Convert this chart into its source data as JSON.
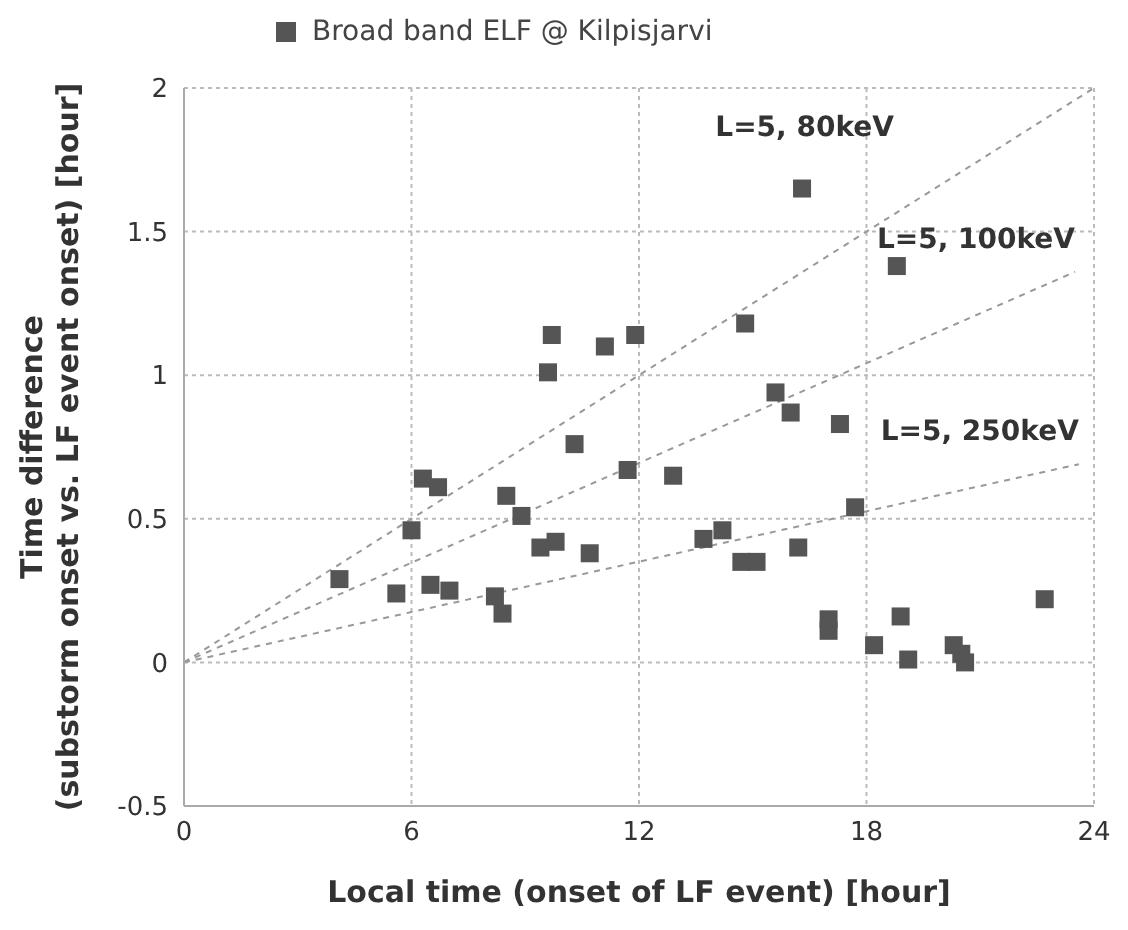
{
  "chart_data": {
    "type": "scatter",
    "xlabel": "Local time (onset of LF event) [hour]",
    "ylabel": "Time difference\n(substorm onset vs. LF event onset) [hour]",
    "series": [
      {
        "name": "Broad band ELF @ Kilpisjarvi",
        "marker": "square",
        "color": "#555555",
        "x": [
          4.1,
          5.6,
          6.0,
          6.3,
          6.7,
          6.5,
          7.0,
          8.2,
          8.4,
          8.5,
          8.9,
          9.4,
          9.8,
          9.6,
          9.7,
          10.3,
          10.7,
          11.1,
          11.7,
          11.9,
          12.9,
          13.7,
          14.2,
          14.7,
          15.1,
          14.8,
          15.6,
          16.0,
          16.2,
          16.3,
          17.3,
          17.7,
          17.0,
          17.0,
          18.2,
          18.8,
          18.9,
          19.1,
          20.3,
          20.5,
          20.6,
          22.7
        ],
        "values": [
          0.29,
          0.24,
          0.46,
          0.64,
          0.61,
          0.27,
          0.25,
          0.23,
          0.17,
          0.58,
          0.51,
          0.4,
          0.42,
          1.01,
          1.14,
          0.76,
          0.38,
          1.1,
          0.67,
          1.14,
          0.65,
          0.43,
          0.46,
          0.35,
          0.35,
          1.18,
          0.94,
          0.87,
          0.4,
          1.65,
          0.83,
          0.54,
          0.15,
          0.11,
          0.06,
          1.38,
          0.16,
          0.01,
          0.06,
          0.03,
          0.0,
          0.22
        ]
      },
      {
        "type": "line",
        "marker": "none",
        "color": "#999999",
        "x": [
          0,
          24
        ],
        "values": [
          0,
          2.0
        ]
      },
      {
        "type": "line",
        "marker": "none",
        "color": "#999999",
        "x": [
          0,
          23.5
        ],
        "values": [
          0,
          1.36
        ]
      },
      {
        "type": "line",
        "marker": "none",
        "color": "#999999",
        "x": [
          0,
          23.6
        ],
        "values": [
          0,
          0.69
        ]
      }
    ],
    "annotations": [
      "L=5, 80keV",
      "L=5, 100keV",
      "L=5, 250keV"
    ],
    "xlim": [
      0,
      24
    ],
    "xticks": [
      0,
      6,
      12,
      18,
      24
    ],
    "ylim": [
      -0.5,
      2
    ],
    "yticks": [
      -0.5,
      0,
      0.5,
      1,
      1.5,
      2
    ],
    "grid": true,
    "legend": "top",
    "line_style": "dashed"
  }
}
